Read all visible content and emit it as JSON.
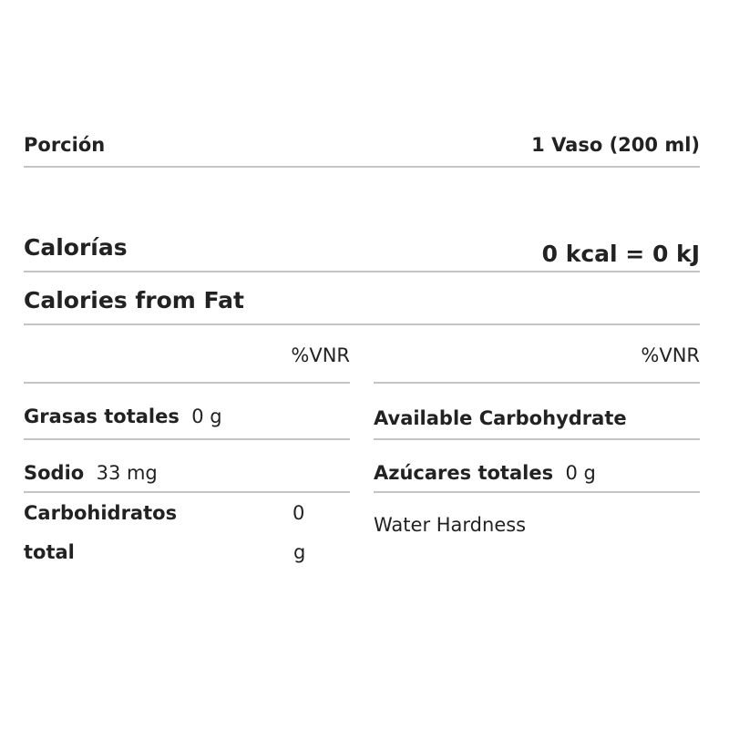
{
  "serving": {
    "label": "Porción",
    "value": "1 Vaso (200 ml)"
  },
  "calories": {
    "label": "Calorías",
    "value": "0 kcal = 0 kJ"
  },
  "calories_from_fat": {
    "label": "Calories from Fat"
  },
  "left_column": {
    "header": "%VNR",
    "rows": [
      {
        "label": "Grasas totales",
        "value": "0 g"
      },
      {
        "label": "Sodio",
        "value": "33 mg"
      },
      {
        "label_line1": "Carbohidratos",
        "label_line2": "total",
        "value_line1": "0",
        "value_line2": "g"
      }
    ]
  },
  "right_column": {
    "header": "%VNR",
    "rows": [
      {
        "label": "Available Carbohydrate"
      },
      {
        "label": "Azúcares totales",
        "value": "0 g"
      },
      {
        "label": "Water Hardness"
      }
    ]
  }
}
